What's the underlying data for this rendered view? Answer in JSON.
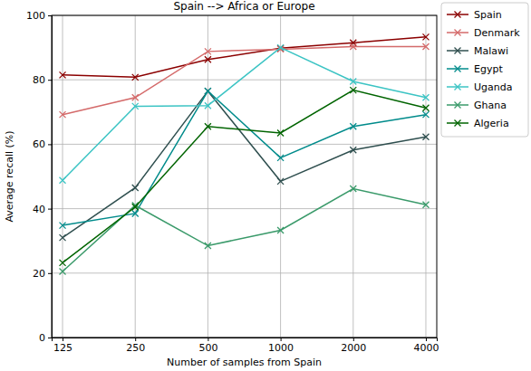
{
  "chart_data": {
    "type": "line",
    "title": "Spain --> Africa or Europe",
    "x_label": "Number of samples from Spain",
    "y_label": "Average recall (%)",
    "categories": [
      "125",
      "250",
      "500",
      "1000",
      "2000",
      "4000"
    ],
    "ylim": [
      0,
      100
    ],
    "yticks": [
      0,
      20,
      40,
      60,
      80,
      100
    ],
    "grid": true,
    "legend": "outside-upper-right",
    "marker": "x",
    "series": [
      {
        "name": "Spain",
        "color": "#8b0000",
        "values": [
          81.5,
          80.8,
          86.3,
          89.8,
          91.5,
          93.3
        ]
      },
      {
        "name": "Denmark",
        "color": "#d46a6a",
        "values": [
          69.2,
          74.5,
          88.8,
          89.5,
          90.3,
          90.3
        ]
      },
      {
        "name": "Malawi",
        "color": "#2f4f4f",
        "values": [
          31.0,
          46.5,
          76.5,
          48.5,
          58.2,
          62.3
        ]
      },
      {
        "name": "Egypt",
        "color": "#008b8b",
        "values": [
          34.8,
          38.5,
          76.5,
          55.8,
          65.5,
          69.2
        ]
      },
      {
        "name": "Uganda",
        "color": "#3cc4c4",
        "values": [
          48.8,
          71.8,
          72.0,
          90.0,
          79.5,
          74.5
        ]
      },
      {
        "name": "Ghana",
        "color": "#3a9a6a",
        "values": [
          20.5,
          41.0,
          28.5,
          33.3,
          46.2,
          41.2
        ]
      },
      {
        "name": "Algeria",
        "color": "#006400",
        "values": [
          23.2,
          40.5,
          65.5,
          63.5,
          76.8,
          71.3
        ]
      }
    ]
  }
}
